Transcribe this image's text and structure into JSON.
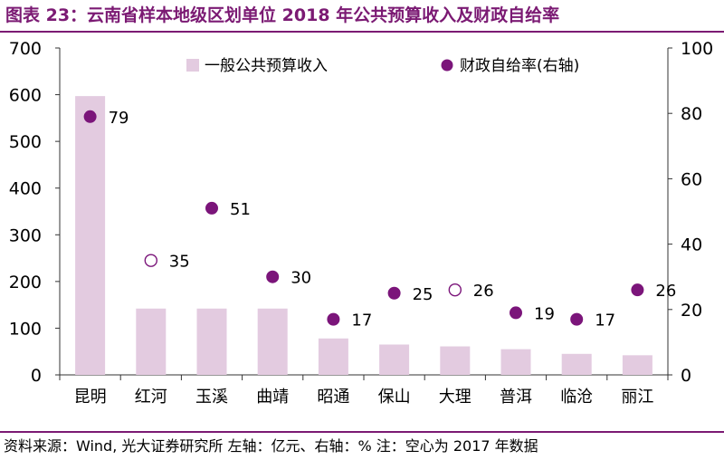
{
  "title": "图表 23：云南省样本地级区划单位 2018 年公共预算收入及财政自给率",
  "source": "资料来源：Wind, 光大证券研究所   左轴：亿元、右轴：%   注：空心为 2017 年数据",
  "colors": {
    "title": "#7b1a73",
    "bar": "#e3cbe0",
    "dot": "#7b157a",
    "axis": "#333333"
  },
  "chart_data": {
    "type": "bar",
    "categories": [
      "昆明",
      "红河",
      "玉溪",
      "曲靖",
      "昭通",
      "保山",
      "大理",
      "普洱",
      "临沧",
      "丽江"
    ],
    "series": [
      {
        "name": "一般公共预算收入",
        "axis": "left",
        "kind": "bar",
        "values": [
          597,
          142,
          142,
          142,
          78,
          65,
          61,
          55,
          45,
          42
        ]
      },
      {
        "name": "财政自给率(右轴)",
        "axis": "right",
        "kind": "scatter",
        "values": [
          79,
          35,
          51,
          30,
          17,
          25,
          26,
          19,
          17,
          26
        ],
        "hollow": [
          false,
          true,
          false,
          false,
          false,
          false,
          true,
          false,
          false,
          false
        ]
      }
    ],
    "data_labels": [
      "79",
      "35",
      "51",
      "30",
      "17",
      "25",
      "26",
      "19",
      "17",
      "26"
    ],
    "y_left": {
      "min": 0,
      "max": 700,
      "ticks": [
        0,
        100,
        200,
        300,
        400,
        500,
        600,
        700
      ]
    },
    "y_right": {
      "min": 0,
      "max": 100,
      "ticks": [
        0,
        20,
        40,
        60,
        80,
        100
      ]
    },
    "legend": [
      "一般公共预算收入",
      "财政自给率(右轴)"
    ],
    "legend_position": "top"
  }
}
